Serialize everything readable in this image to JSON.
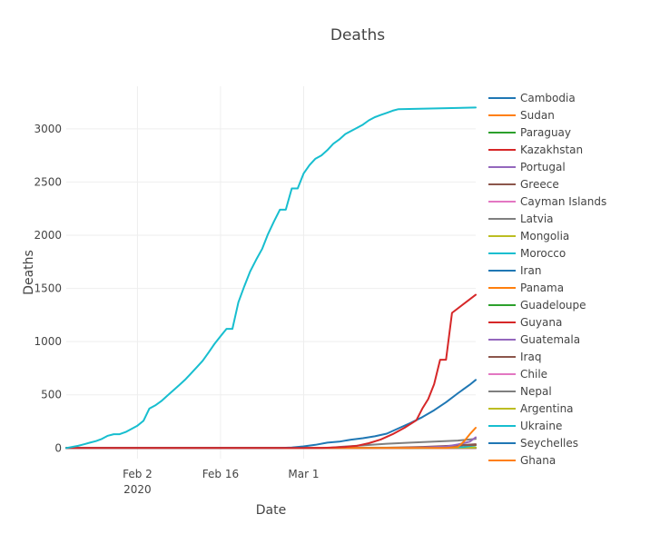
{
  "chart_data": {
    "type": "line",
    "title": "Deaths",
    "xlabel": "Date",
    "ylabel": "Deaths",
    "x_range_days": [
      0,
      69
    ],
    "ylim": [
      -100,
      3400
    ],
    "x_ticks": [
      {
        "day": 12,
        "label": "Feb 2",
        "sublabel": "2020"
      },
      {
        "day": 26,
        "label": "Feb 16",
        "sublabel": ""
      },
      {
        "day": 40,
        "label": "Mar 1",
        "sublabel": ""
      }
    ],
    "y_ticks": [
      0,
      500,
      1000,
      1500,
      2000,
      2500,
      3000
    ],
    "grid": true,
    "legend_position": "right",
    "series": [
      {
        "name": "Cambodia",
        "color": "#1f77b4",
        "points": [
          [
            0,
            0
          ],
          [
            69,
            0
          ]
        ]
      },
      {
        "name": "Sudan",
        "color": "#ff7f0e",
        "points": [
          [
            0,
            0
          ],
          [
            69,
            2
          ]
        ]
      },
      {
        "name": "Paraguay",
        "color": "#2ca02c",
        "points": [
          [
            0,
            0
          ],
          [
            69,
            3
          ]
        ]
      },
      {
        "name": "Kazakhstan",
        "color": "#d62728",
        "points": [
          [
            0,
            0
          ],
          [
            69,
            1
          ]
        ]
      },
      {
        "name": "Portugal",
        "color": "#9467bd",
        "points": [
          [
            0,
            0
          ],
          [
            55,
            0
          ],
          [
            60,
            5
          ],
          [
            64,
            14
          ],
          [
            66,
            33
          ],
          [
            68,
            60
          ],
          [
            69,
            100
          ]
        ]
      },
      {
        "name": "Greece",
        "color": "#8c564b",
        "points": [
          [
            0,
            0
          ],
          [
            58,
            0
          ],
          [
            62,
            5
          ],
          [
            65,
            15
          ],
          [
            67,
            26
          ],
          [
            69,
            28
          ]
        ]
      },
      {
        "name": "Cayman Islands",
        "color": "#e377c2",
        "points": [
          [
            0,
            0
          ],
          [
            69,
            1
          ]
        ]
      },
      {
        "name": "Latvia",
        "color": "#7f7f7f",
        "points": [
          [
            0,
            0
          ],
          [
            69,
            0
          ]
        ]
      },
      {
        "name": "Mongolia",
        "color": "#bcbd22",
        "points": [
          [
            0,
            0
          ],
          [
            69,
            0
          ]
        ]
      },
      {
        "name": "Morocco",
        "color": "#17becf",
        "points": [
          [
            0,
            0
          ],
          [
            60,
            0
          ],
          [
            64,
            3
          ],
          [
            67,
            10
          ],
          [
            69,
            26
          ]
        ]
      },
      {
        "name": "Iran",
        "color": "#1f77b4",
        "points": [
          [
            0,
            0
          ],
          [
            36,
            0
          ],
          [
            38,
            5
          ],
          [
            40,
            15
          ],
          [
            42,
            30
          ],
          [
            44,
            50
          ],
          [
            46,
            60
          ],
          [
            48,
            78
          ],
          [
            50,
            92
          ],
          [
            52,
            110
          ],
          [
            54,
            135
          ],
          [
            56,
            185
          ],
          [
            58,
            235
          ],
          [
            60,
            290
          ],
          [
            62,
            355
          ],
          [
            64,
            430
          ],
          [
            66,
            515
          ],
          [
            68,
            595
          ],
          [
            69,
            640
          ]
        ]
      },
      {
        "name": "Panama",
        "color": "#ff7f0e",
        "points": [
          [
            0,
            0
          ],
          [
            64,
            0
          ],
          [
            66,
            10
          ],
          [
            67,
            60
          ],
          [
            68,
            130
          ],
          [
            69,
            190
          ]
        ]
      },
      {
        "name": "Guadeloupe",
        "color": "#2ca02c",
        "points": [
          [
            0,
            0
          ],
          [
            69,
            1
          ]
        ]
      },
      {
        "name": "Guyana",
        "color": "#d62728",
        "points": [
          [
            0,
            0
          ],
          [
            43,
            0
          ],
          [
            47,
            10
          ],
          [
            49,
            20
          ],
          [
            51,
            45
          ],
          [
            53,
            80
          ],
          [
            55,
            130
          ],
          [
            57,
            190
          ],
          [
            59,
            260
          ],
          [
            60,
            370
          ],
          [
            61,
            460
          ],
          [
            62,
            600
          ],
          [
            63,
            830
          ],
          [
            64,
            830
          ],
          [
            65,
            1270
          ],
          [
            69,
            1440
          ]
        ]
      },
      {
        "name": "Guatemala",
        "color": "#9467bd",
        "points": [
          [
            0,
            0
          ],
          [
            69,
            1
          ]
        ]
      },
      {
        "name": "Iraq",
        "color": "#8c564b",
        "points": [
          [
            0,
            0
          ],
          [
            52,
            0
          ],
          [
            56,
            5
          ],
          [
            60,
            10
          ],
          [
            65,
            22
          ],
          [
            69,
            36
          ]
        ]
      },
      {
        "name": "Chile",
        "color": "#e377c2",
        "points": [
          [
            0,
            0
          ],
          [
            69,
            2
          ]
        ]
      },
      {
        "name": "Nepal",
        "color": "#7f7f7f",
        "points": [
          [
            0,
            0
          ],
          [
            44,
            0
          ],
          [
            46,
            10
          ],
          [
            50,
            25
          ],
          [
            54,
            40
          ],
          [
            58,
            50
          ],
          [
            62,
            60
          ],
          [
            66,
            70
          ],
          [
            69,
            85
          ]
        ]
      },
      {
        "name": "Argentina",
        "color": "#bcbd22",
        "points": [
          [
            0,
            0
          ],
          [
            69,
            4
          ]
        ]
      },
      {
        "name": "Ukraine",
        "color": "#17becf",
        "points": [
          [
            0,
            0
          ],
          [
            1,
            10
          ],
          [
            2,
            20
          ],
          [
            3,
            35
          ],
          [
            4,
            50
          ],
          [
            5,
            65
          ],
          [
            6,
            85
          ],
          [
            7,
            115
          ],
          [
            8,
            130
          ],
          [
            9,
            130
          ],
          [
            10,
            150
          ],
          [
            11,
            180
          ],
          [
            12,
            210
          ],
          [
            13,
            255
          ],
          [
            14,
            370
          ],
          [
            15,
            400
          ],
          [
            16,
            440
          ],
          [
            17,
            490
          ],
          [
            18,
            540
          ],
          [
            19,
            590
          ],
          [
            20,
            640
          ],
          [
            21,
            700
          ],
          [
            22,
            760
          ],
          [
            23,
            820
          ],
          [
            24,
            900
          ],
          [
            25,
            980
          ],
          [
            26,
            1050
          ],
          [
            27,
            1120
          ],
          [
            28,
            1120
          ],
          [
            29,
            1370
          ],
          [
            30,
            1520
          ],
          [
            31,
            1660
          ],
          [
            32,
            1770
          ],
          [
            33,
            1870
          ],
          [
            34,
            2010
          ],
          [
            35,
            2130
          ],
          [
            36,
            2240
          ],
          [
            37,
            2240
          ],
          [
            38,
            2440
          ],
          [
            39,
            2440
          ],
          [
            40,
            2580
          ],
          [
            41,
            2660
          ],
          [
            42,
            2720
          ],
          [
            43,
            2750
          ],
          [
            44,
            2800
          ],
          [
            45,
            2860
          ],
          [
            46,
            2900
          ],
          [
            47,
            2950
          ],
          [
            48,
            2980
          ],
          [
            49,
            3010
          ],
          [
            50,
            3040
          ],
          [
            51,
            3080
          ],
          [
            52,
            3110
          ],
          [
            53,
            3130
          ],
          [
            54,
            3150
          ],
          [
            55,
            3170
          ],
          [
            56,
            3185
          ],
          [
            69,
            3200
          ]
        ]
      },
      {
        "name": "Seychelles",
        "color": "#1f77b4",
        "points": [
          [
            0,
            0
          ],
          [
            69,
            0
          ]
        ]
      },
      {
        "name": "Ghana",
        "color": "#ff7f0e",
        "points": [
          [
            0,
            0
          ],
          [
            69,
            0
          ]
        ]
      }
    ]
  }
}
